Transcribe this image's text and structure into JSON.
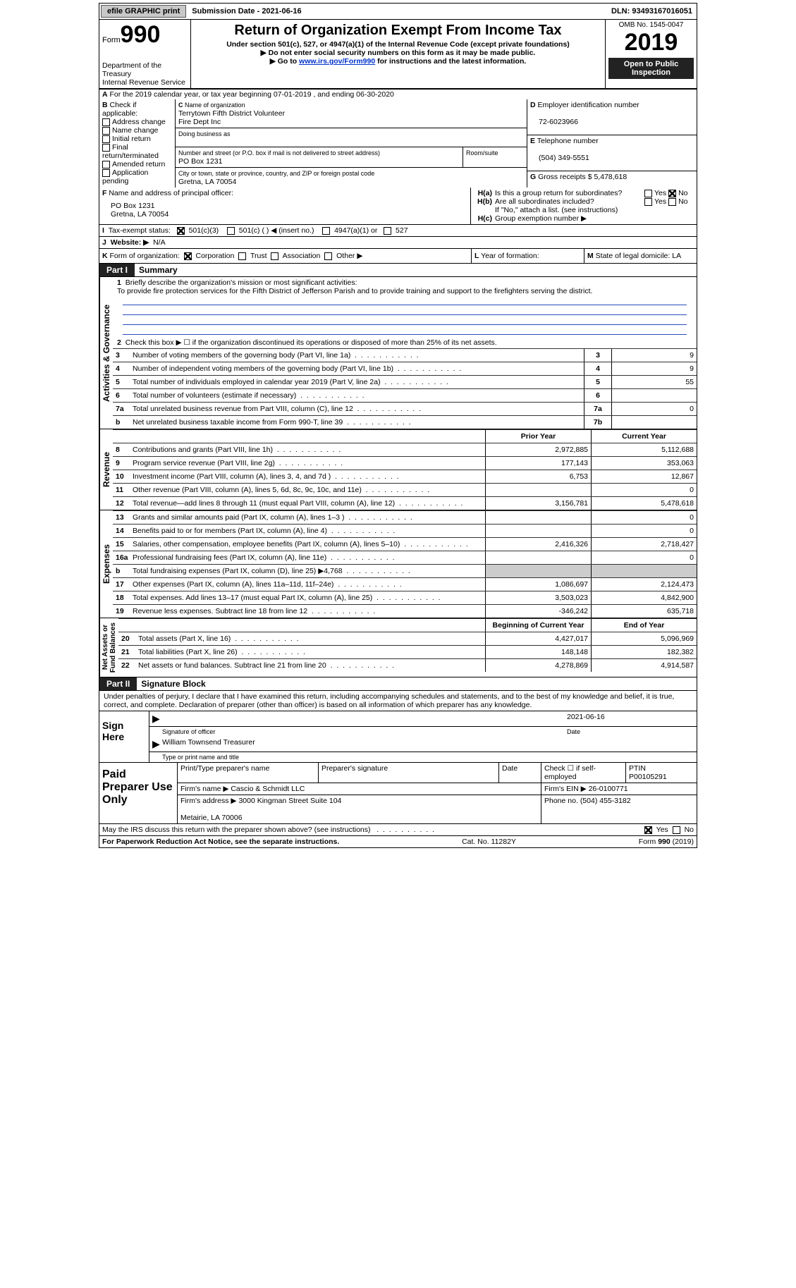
{
  "top": {
    "efile": "efile GRAPHIC print",
    "sub": "Submission Date - 2021-06-16",
    "dln": "DLN: 93493167016051"
  },
  "hdr": {
    "form_label": "Form",
    "form_no": "990",
    "title": "Return of Organization Exempt From Income Tax",
    "sub1": "Under section 501(c), 527, or 4947(a)(1) of the Internal Revenue Code (except private foundations)",
    "sub2": "▶ Do not enter social security numbers on this form as it may be made public.",
    "sub3_pre": "▶ Go to ",
    "sub3_link": "www.irs.gov/Form990",
    "sub3_post": " for instructions and the latest information.",
    "dep": "Department of the Treasury\nInternal Revenue Service",
    "omb": "OMB No. 1545-0047",
    "year": "2019",
    "open": "Open to Public Inspection"
  },
  "A": {
    "text": "For the 2019 calendar year, or tax year beginning 07-01-2019    , and ending 06-30-2020"
  },
  "B": {
    "label": "Check if applicable:",
    "items": [
      "Address change",
      "Name change",
      "Initial return",
      "Final return/terminated",
      "Amended return",
      "Application pending"
    ]
  },
  "C": {
    "lbl": "Name of organization",
    "name": "Terrytown Fifth District Volunteer\nFire Dept Inc",
    "dba_lbl": "Doing business as",
    "addr_lbl": "Number and street (or P.O. box if mail is not delivered to street address)",
    "room_lbl": "Room/suite",
    "addr": "PO Box 1231",
    "city_lbl": "City or town, state or province, country, and ZIP or foreign postal code",
    "city": "Gretna, LA  70054"
  },
  "D": {
    "lbl": "Employer identification number",
    "val": "72-6023966"
  },
  "E": {
    "lbl": "Telephone number",
    "val": "(504) 349-5551"
  },
  "G": {
    "lbl": "Gross receipts $",
    "val": "5,478,618"
  },
  "F": {
    "lbl": "Name and address of principal officer:",
    "addr": "PO Box 1231\nGretna, LA  70054"
  },
  "H": {
    "a": "Is this a group return for subordinates?",
    "a_yes": "Yes",
    "a_no": "No",
    "b": "Are all subordinates included?",
    "b_yes": "Yes",
    "b_no": "No",
    "b2": "If \"No,\" attach a list. (see instructions)",
    "c": "Group exemption number ▶"
  },
  "I": {
    "lbl": "Tax-exempt status:",
    "o1": "501(c)(3)",
    "o2": "501(c) (  ) ◀ (insert no.)",
    "o3": "4947(a)(1) or",
    "o4": "527"
  },
  "J": {
    "lbl": "Website: ▶",
    "val": "N/A"
  },
  "K": {
    "lbl": "Form of organization:",
    "o1": "Corporation",
    "o2": "Trust",
    "o3": "Association",
    "o4": "Other ▶"
  },
  "L": {
    "lbl": "Year of formation:"
  },
  "M": {
    "lbl": "State of legal domicile: LA"
  },
  "p1": {
    "part": "Part I",
    "title": "Summary",
    "q1": "Briefly describe the organization's mission or most significant activities:",
    "mission": "To provide fire protection services for the Fifth District of Jefferson Parish and to provide training and support to the firefighters serving the district.",
    "q2": "Check this box ▶ ☐  if the organization discontinued its operations or disposed of more than 25% of its net assets.",
    "gov_label": "Activities & Governance",
    "rev_label": "Revenue",
    "exp_label": "Expenses",
    "net_label": "Net Assets or\nFund Balances",
    "rows_g": [
      {
        "n": "3",
        "d": "Number of voting members of the governing body (Part VI, line 1a)",
        "nc": "3",
        "v": "9"
      },
      {
        "n": "4",
        "d": "Number of independent voting members of the governing body (Part VI, line 1b)",
        "nc": "4",
        "v": "9"
      },
      {
        "n": "5",
        "d": "Total number of individuals employed in calendar year 2019 (Part V, line 2a)",
        "nc": "5",
        "v": "55"
      },
      {
        "n": "6",
        "d": "Total number of volunteers (estimate if necessary)",
        "nc": "6",
        "v": ""
      },
      {
        "n": "7a",
        "d": "Total unrelated business revenue from Part VIII, column (C), line 12",
        "nc": "7a",
        "v": "0"
      },
      {
        "n": "b",
        "d": "Net unrelated business taxable income from Form 990-T, line 39",
        "nc": "7b",
        "v": ""
      }
    ],
    "colhdr": {
      "py": "Prior Year",
      "cy": "Current Year"
    },
    "rows_r": [
      {
        "n": "8",
        "d": "Contributions and grants (Part VIII, line 1h)",
        "py": "2,972,885",
        "cy": "5,112,688"
      },
      {
        "n": "9",
        "d": "Program service revenue (Part VIII, line 2g)",
        "py": "177,143",
        "cy": "353,063"
      },
      {
        "n": "10",
        "d": "Investment income (Part VIII, column (A), lines 3, 4, and 7d )",
        "py": "6,753",
        "cy": "12,867"
      },
      {
        "n": "11",
        "d": "Other revenue (Part VIII, column (A), lines 5, 6d, 8c, 9c, 10c, and 11e)",
        "py": "",
        "cy": "0"
      },
      {
        "n": "12",
        "d": "Total revenue—add lines 8 through 11 (must equal Part VIII, column (A), line 12)",
        "py": "3,156,781",
        "cy": "5,478,618"
      }
    ],
    "rows_e": [
      {
        "n": "13",
        "d": "Grants and similar amounts paid (Part IX, column (A), lines 1–3 )",
        "py": "",
        "cy": "0"
      },
      {
        "n": "14",
        "d": "Benefits paid to or for members (Part IX, column (A), line 4)",
        "py": "",
        "cy": "0"
      },
      {
        "n": "15",
        "d": "Salaries, other compensation, employee benefits (Part IX, column (A), lines 5–10)",
        "py": "2,416,326",
        "cy": "2,718,427"
      },
      {
        "n": "16a",
        "d": "Professional fundraising fees (Part IX, column (A), line 11e)",
        "py": "",
        "cy": "0"
      },
      {
        "n": "b",
        "d": "Total fundraising expenses (Part IX, column (D), line 25) ▶4,768",
        "py": "grey",
        "cy": "grey"
      },
      {
        "n": "17",
        "d": "Other expenses (Part IX, column (A), lines 11a–11d, 11f–24e)",
        "py": "1,086,697",
        "cy": "2,124,473"
      },
      {
        "n": "18",
        "d": "Total expenses. Add lines 13–17 (must equal Part IX, column (A), line 25)",
        "py": "3,503,023",
        "cy": "4,842,900"
      },
      {
        "n": "19",
        "d": "Revenue less expenses. Subtract line 18 from line 12",
        "py": "-346,242",
        "cy": "635,718"
      }
    ],
    "colhdr2": {
      "py": "Beginning of Current Year",
      "cy": "End of Year"
    },
    "rows_n": [
      {
        "n": "20",
        "d": "Total assets (Part X, line 16)",
        "py": "4,427,017",
        "cy": "5,096,969"
      },
      {
        "n": "21",
        "d": "Total liabilities (Part X, line 26)",
        "py": "148,148",
        "cy": "182,382"
      },
      {
        "n": "22",
        "d": "Net assets or fund balances. Subtract line 21 from line 20",
        "py": "4,278,869",
        "cy": "4,914,587"
      }
    ]
  },
  "p2": {
    "part": "Part II",
    "title": "Signature Block",
    "pen": "Under penalties of perjury, I declare that I have examined this return, including accompanying schedules and statements, and to the best of my knowledge and belief, it is true, correct, and complete. Declaration of preparer (other than officer) is based on all information of which preparer has any knowledge.",
    "sign_here": "Sign Here",
    "sig_officer": "Signature of officer",
    "sig_date": "2021-06-16",
    "date_lbl": "Date",
    "sig_name": "William Townsend  Treasurer",
    "sig_name_lbl": "Type or print name and title",
    "paid": "Paid Preparer Use Only",
    "pp_name": "Print/Type preparer's name",
    "pp_sig": "Preparer's signature",
    "pp_date": "Date",
    "pp_chk": "Check ☐ if self-employed",
    "pp_ptin_lbl": "PTIN",
    "pp_ptin": "P00105291",
    "firm_name_lbl": "Firm's name   ▶",
    "firm_name": "Cascio & Schmidt LLC",
    "firm_ein_lbl": "Firm's EIN ▶",
    "firm_ein": "26-0100771",
    "firm_addr_lbl": "Firm's address ▶",
    "firm_addr": "3000 Kingman Street Suite 104\n\nMetairie, LA  70006",
    "firm_phone_lbl": "Phone no.",
    "firm_phone": "(504) 455-3182",
    "discuss": "May the IRS discuss this return with the preparer shown above? (see instructions)",
    "d_yes": "Yes",
    "d_no": "No"
  },
  "foot": {
    "l": "For Paperwork Reduction Act Notice, see the separate instructions.",
    "c": "Cat. No. 11282Y",
    "r": "Form 990 (2019)"
  }
}
